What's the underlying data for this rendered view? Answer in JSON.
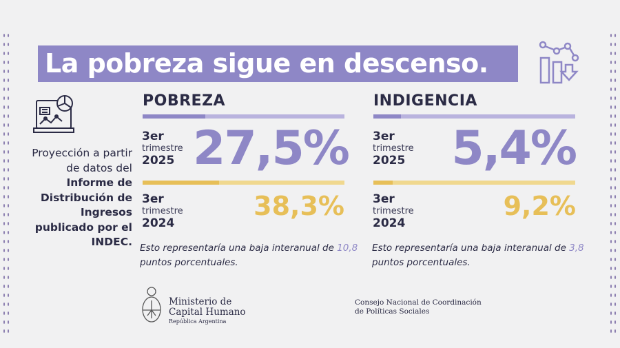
{
  "title": "La pobreza sigue en descenso.",
  "colors": {
    "purple": "#8e87c6",
    "yellow": "#e7bf58",
    "text": "#2b2b45"
  },
  "side_text": {
    "line1": "Proyección a partir de datos del ",
    "bold": "Informe de Distribución de Ingresos publicado por el INDEC."
  },
  "pobreza": {
    "heading": "POBREZA",
    "current": {
      "ordinal": "3er",
      "period": "trimestre",
      "year": "2025",
      "value": "27,5%"
    },
    "previous": {
      "ordinal": "3er",
      "period": "trimestre",
      "year": "2024",
      "value": "38,3%"
    },
    "note_a": "Esto representaría una baja interanual de ",
    "note_value": "10,8",
    "note_b": " puntos porcentuales."
  },
  "indigencia": {
    "heading": "INDIGENCIA",
    "current": {
      "ordinal": "3er",
      "period": "trimestre",
      "year": "2025",
      "value": "5,4%"
    },
    "previous": {
      "ordinal": "3er",
      "period": "trimestre",
      "year": "2024",
      "value": "9,2%"
    },
    "note_a": "Esto representaría una baja interanual de ",
    "note_value": "3,8",
    "note_b": " puntos porcentuales."
  },
  "footer": {
    "ministry_line1": "Ministerio de",
    "ministry_line2": "Capital Humano",
    "ministry_sub": "República Argentina",
    "council_line1": "Consejo Nacional de Coordinación",
    "council_line2": "de Políticas Sociales"
  },
  "icons": {
    "header": "chart-down-icon",
    "side": "laptop-chart-icon",
    "logo": "argentina-coat-of-arms"
  }
}
